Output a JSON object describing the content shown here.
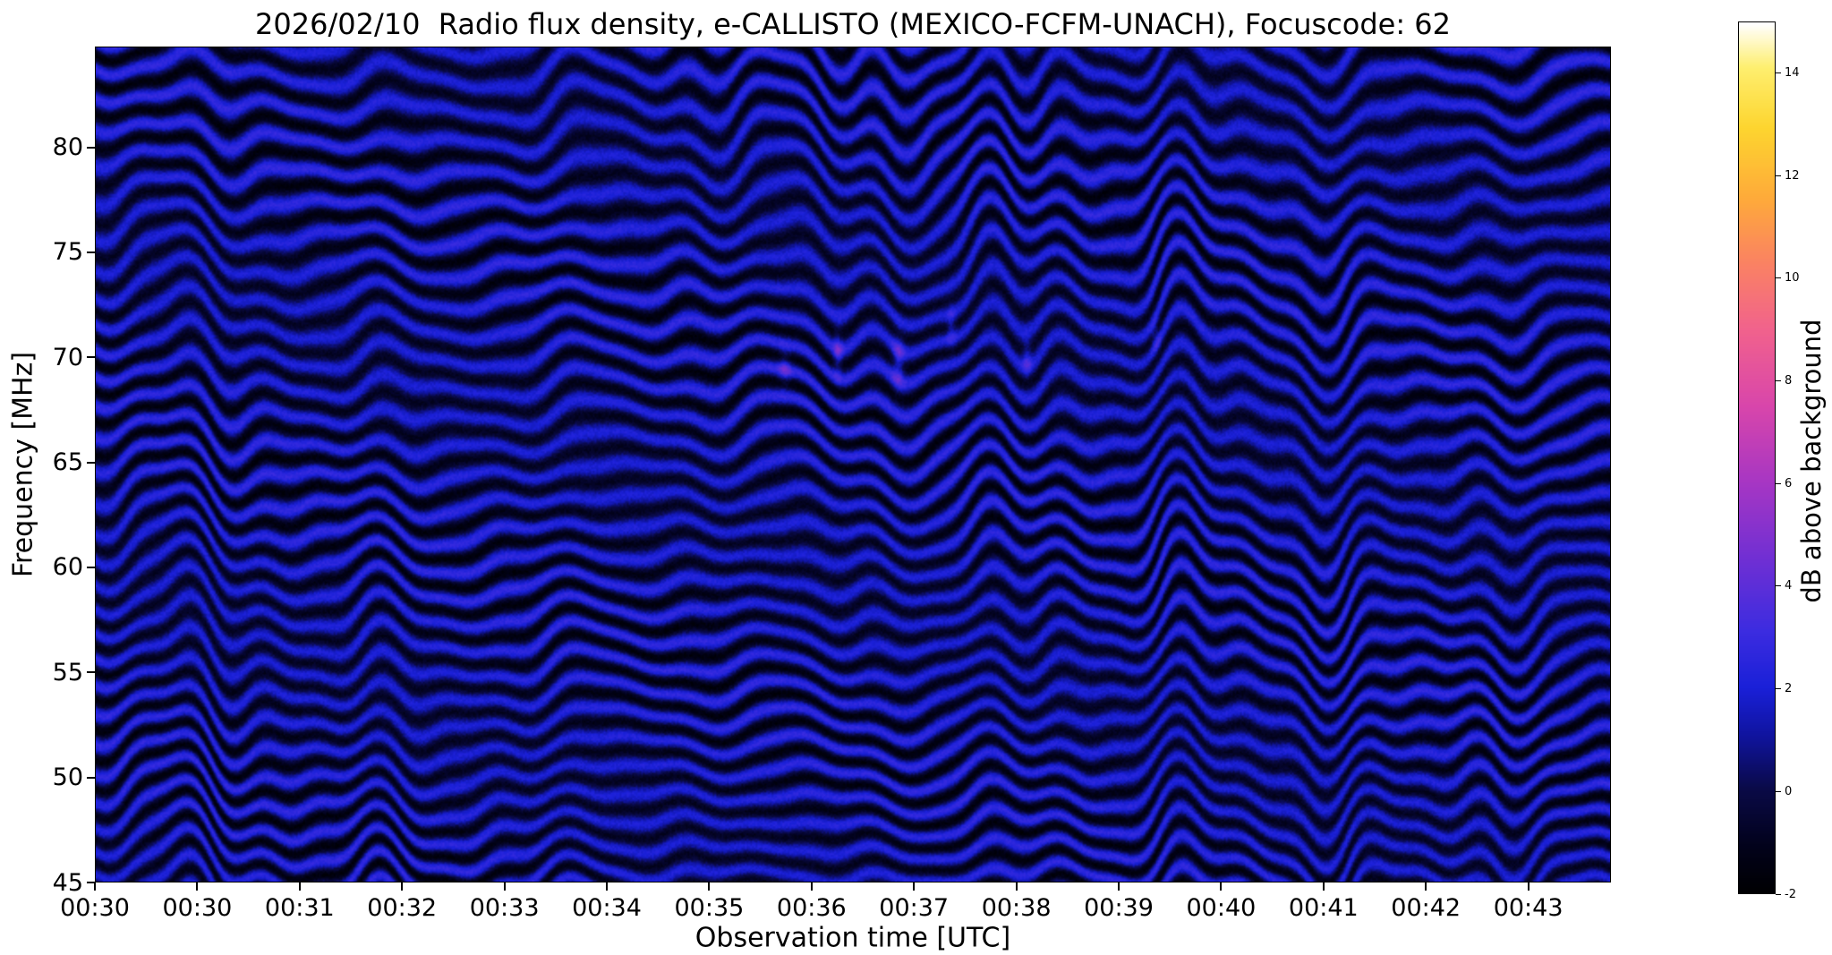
{
  "chart_data": {
    "type": "heatmap",
    "title": "2026/02/10  Radio flux density, e-CALLISTO (MEXICO-FCFM-UNACH), Focuscode: 62",
    "xlabel": "Observation time [UTC]",
    "ylabel": "Frequency [MHz]",
    "x_ticks": [
      "00:30",
      "00:30",
      "00:31",
      "00:32",
      "00:33",
      "00:34",
      "00:35",
      "00:36",
      "00:37",
      "00:38",
      "00:39",
      "00:40",
      "00:41",
      "00:42",
      "00:43"
    ],
    "y_ticks": [
      45,
      50,
      55,
      60,
      65,
      70,
      75,
      80
    ],
    "ylim": [
      45,
      84.8
    ],
    "grid": false,
    "colorbar": {
      "label": "dB above background",
      "ticks": [
        -2,
        0,
        2,
        4,
        6,
        8,
        10,
        12,
        14
      ],
      "clim": [
        -2,
        15
      ],
      "colormap_stops": [
        [
          0.0,
          "#000003"
        ],
        [
          0.05,
          "#02021a"
        ],
        [
          0.118,
          "#0a0a47"
        ],
        [
          0.18,
          "#10149f"
        ],
        [
          0.235,
          "#1a20d8"
        ],
        [
          0.3,
          "#3c2ce0"
        ],
        [
          0.38,
          "#6e2fd4"
        ],
        [
          0.47,
          "#a636c4"
        ],
        [
          0.56,
          "#d946ab"
        ],
        [
          0.647,
          "#f1628d"
        ],
        [
          0.73,
          "#fb8560"
        ],
        [
          0.8,
          "#feab3a"
        ],
        [
          0.88,
          "#fdd52f"
        ],
        [
          0.95,
          "#feef6f"
        ],
        [
          1.0,
          "#ffffff"
        ]
      ]
    },
    "pattern": {
      "description": "quasi-horizontal undulating interference fringes over dark blue background, faint brighter emission specks near 69-72 MHz between 00:34 and 00:40",
      "band_phase": {
        "n": 33,
        "curve": 0.12
      },
      "base_db": 0.55,
      "amplitude_db": 1.85,
      "noise_db": 0.35,
      "wobble": [
        [
          7.3,
          0.55,
          0.4
        ],
        [
          15.2,
          0.35,
          1.9
        ],
        [
          24.7,
          0.22,
          4.1
        ],
        [
          3.1,
          0.45,
          2.6
        ]
      ],
      "envelope": {
        "freq": 1.3,
        "amp": 0.45,
        "phase": 0.15,
        "fdep": 0.35
      },
      "shear": {
        "freq": 9.0,
        "amp": 0.25,
        "fdep": 3.0
      },
      "lit": {
        "freq": 2.1,
        "amp": 0.2,
        "phase": 0.8,
        "fdep": 2.5
      },
      "patches": [
        {
          "t": 0.455,
          "f": 69.5,
          "amp": 2.0,
          "tw": 0.004,
          "fw": 0.8
        },
        {
          "t": 0.49,
          "f": 70.2,
          "amp": 2.5,
          "tw": 0.003,
          "fw": 1.0
        },
        {
          "t": 0.53,
          "f": 69.8,
          "amp": 2.8,
          "tw": 0.004,
          "fw": 1.2
        },
        {
          "t": 0.565,
          "f": 71.5,
          "amp": 1.8,
          "tw": 0.003,
          "fw": 0.9
        },
        {
          "t": 0.615,
          "f": 70.0,
          "amp": 2.2,
          "tw": 0.003,
          "fw": 0.8
        },
        {
          "t": 0.7,
          "f": 71.0,
          "amp": 1.6,
          "tw": 0.003,
          "fw": 0.7
        }
      ]
    }
  }
}
